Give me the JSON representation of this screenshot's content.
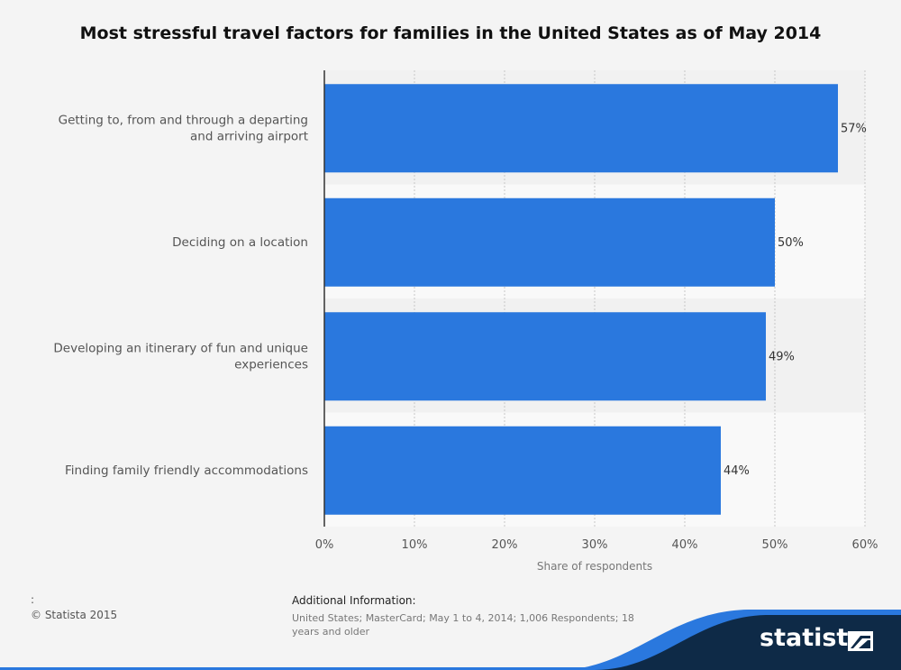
{
  "title": "Most stressful travel factors for families in the United States as of May 2014",
  "chart_data": {
    "type": "bar",
    "orientation": "horizontal",
    "categories": [
      [
        "Getting to, from and through a departing",
        "and arriving airport"
      ],
      [
        "Deciding on a location"
      ],
      [
        "Developing an itinerary of fun and unique",
        "experiences"
      ],
      [
        "Finding family friendly accommodations"
      ]
    ],
    "values": [
      57,
      50,
      49,
      44
    ],
    "value_labels": [
      "57%",
      "50%",
      "49%",
      "44%"
    ],
    "xlabel": "Share of respondents",
    "xlim": [
      0,
      60
    ],
    "xticks": [
      "0%",
      "10%",
      "20%",
      "30%",
      "40%",
      "50%",
      "60%"
    ],
    "grid": true,
    "bar_color": "#2a78de"
  },
  "footer": {
    "colon": ":",
    "copyright": "© Statista 2015",
    "additional_header": "Additional Information:",
    "additional_text": "United States; MasterCard; May 1 to 4, 2014; 1,006 Respondents; 18 years and older"
  },
  "brand": {
    "name": "statista",
    "icon": "statista-logo-icon",
    "dark_color": "#0e2a47",
    "accent_color": "#2a78de"
  }
}
